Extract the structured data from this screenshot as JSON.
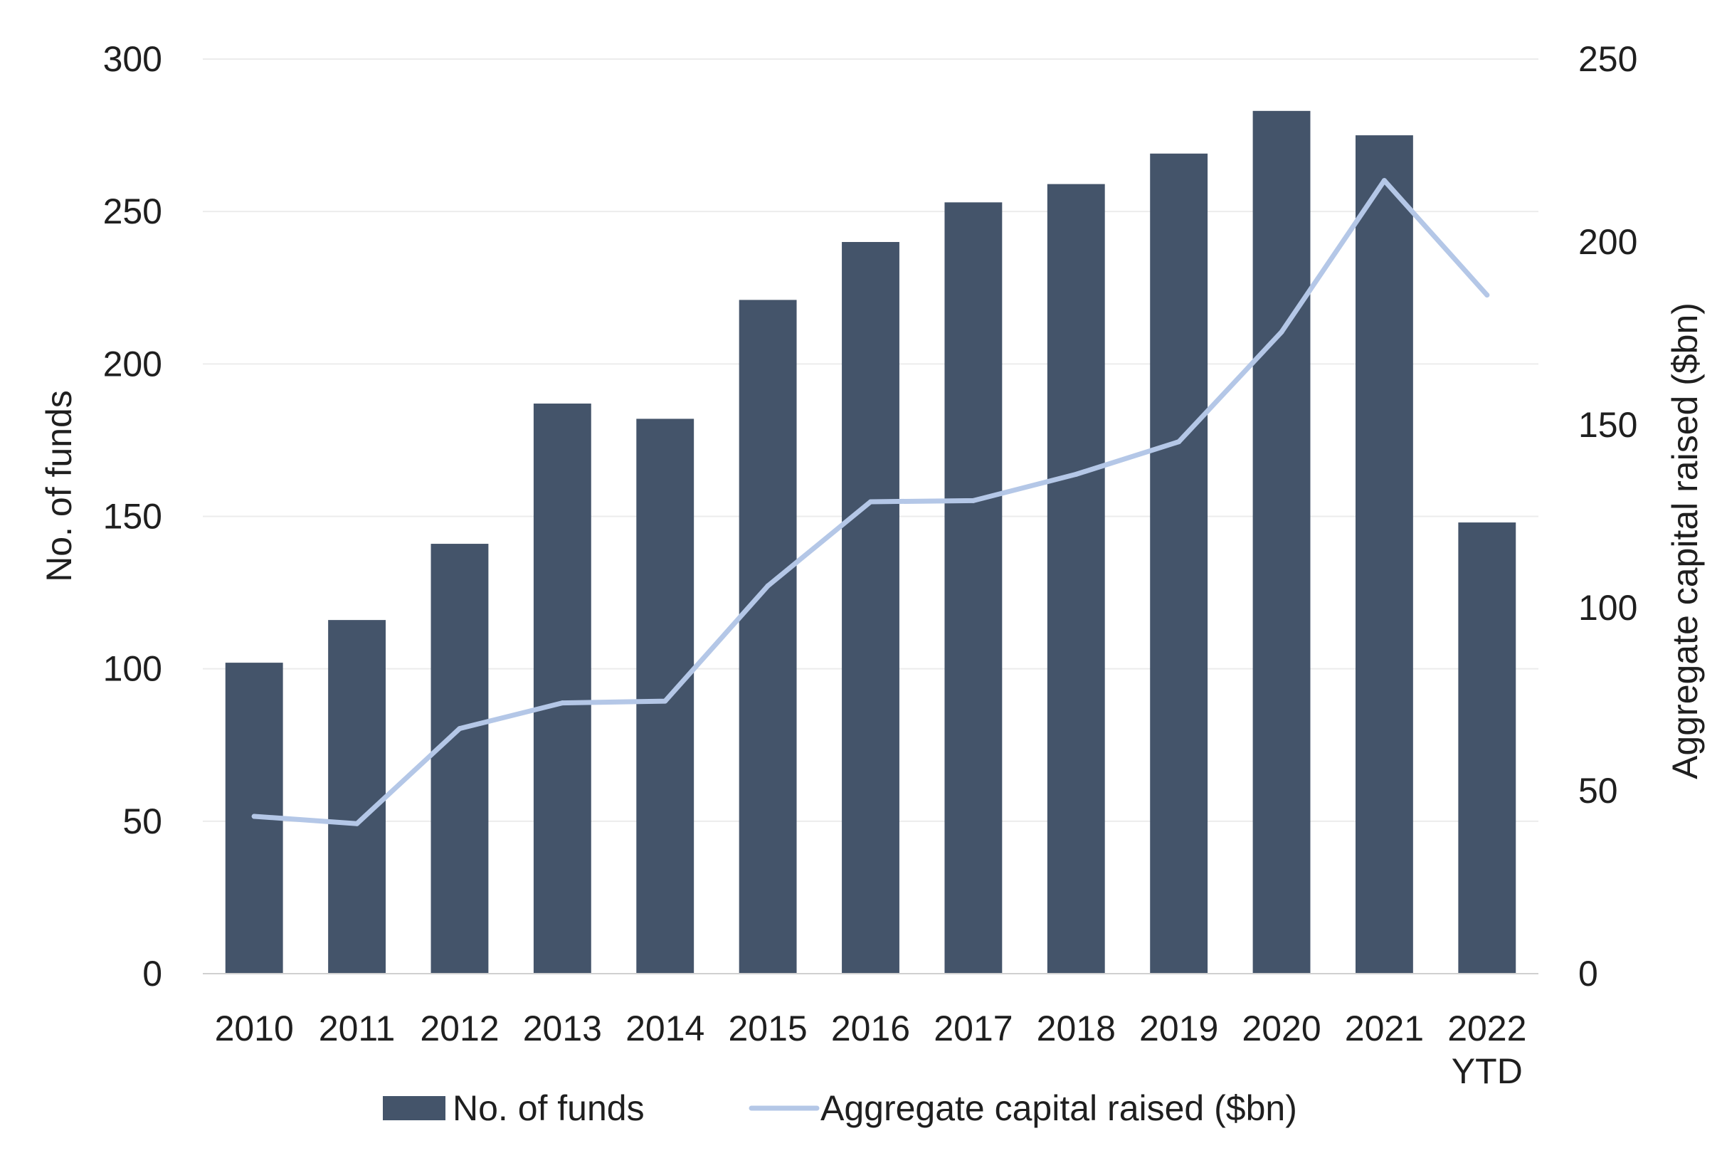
{
  "chart_data": {
    "type": "bar",
    "categories": [
      "2010",
      "2011",
      "2012",
      "2013",
      "2014",
      "2015",
      "2016",
      "2017",
      "2018",
      "2019",
      "2020",
      "2021",
      [
        "2022",
        "YTD"
      ]
    ],
    "series": [
      {
        "name": "No. of funds",
        "type": "bar",
        "axis": "left",
        "color": "#44546a",
        "values": [
          102,
          116,
          141,
          187,
          182,
          221,
          240,
          253,
          259,
          269,
          283,
          275,
          148
        ]
      },
      {
        "name": "Aggregate capital raised ($bn)",
        "type": "line",
        "axis": "right",
        "color": "#b4c7e7",
        "values": [
          43,
          41,
          67,
          74,
          74.5,
          106,
          129,
          129.3,
          136.5,
          145.4,
          175.4,
          216.8,
          185.5
        ]
      }
    ],
    "ylabel": "No. of funds",
    "ylim": [
      0,
      300
    ],
    "yticks": [
      0,
      50,
      100,
      150,
      200,
      250,
      300
    ],
    "y2label": "Aggregate capital raised ($bn)",
    "y2lim": [
      0,
      250
    ],
    "y2ticks": [
      0,
      50,
      100,
      150,
      200,
      250
    ],
    "grid": true,
    "legend": "bottom"
  }
}
